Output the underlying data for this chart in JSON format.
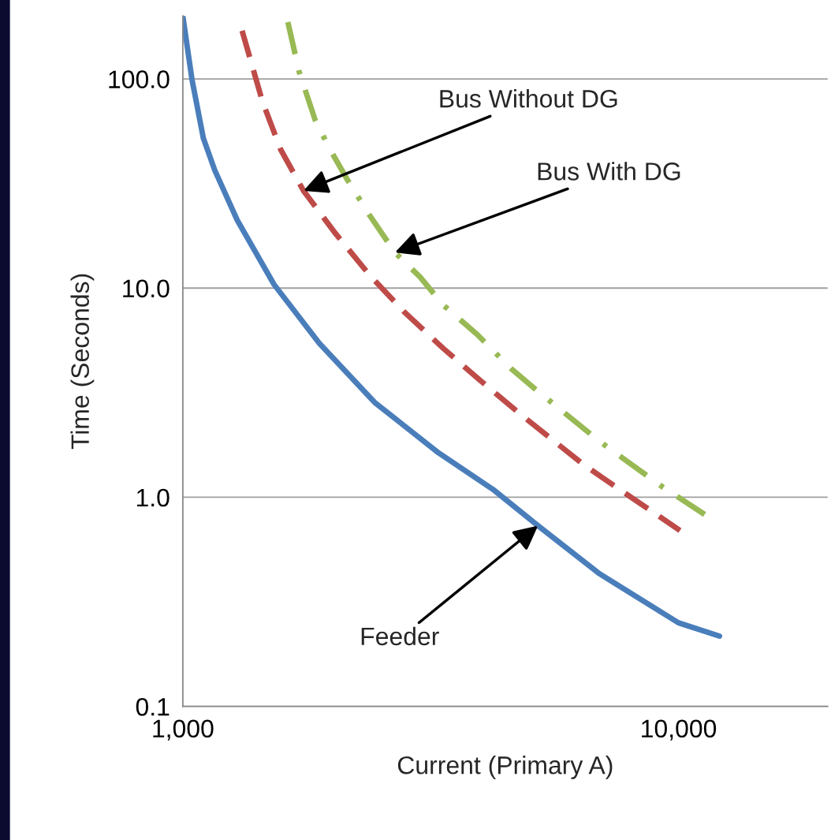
{
  "chart_data": {
    "type": "line",
    "xlabel": "Current (Primary A)",
    "ylabel": "Time (Seconds)",
    "log": "xy",
    "xlim": [
      1000,
      20000
    ],
    "ylim": [
      0.1,
      200
    ],
    "xticks": [
      {
        "value": 1000,
        "label": "1,000"
      },
      {
        "value": 10000,
        "label": "10,000"
      }
    ],
    "yticks": [
      {
        "value": 0.1,
        "label": "0.1"
      },
      {
        "value": 1,
        "label": "1.0"
      },
      {
        "value": 10,
        "label": "10.0"
      },
      {
        "value": 100,
        "label": "100.0"
      }
    ],
    "grid": "y",
    "series": [
      {
        "color": "#4a7ebb",
        "line_style": "solid",
        "x": [
          1000,
          1043,
          1100,
          1160,
          1288,
          1528,
          1886,
          2438,
          3281,
          4226,
          5207,
          6930,
          10000,
          12100
        ],
        "values": [
          200,
          100,
          52.1,
          36.6,
          21.1,
          10.4,
          5.44,
          2.84,
          1.63,
          1.09,
          0.731,
          0.431,
          0.251,
          0.217
        ]
      },
      {
        "color": "#be4b48",
        "line_style": "dashed",
        "x": [
          1317,
          1448,
          1576,
          1752,
          2034,
          2384,
          2792,
          3347,
          3965,
          4803,
          6440,
          8020,
          10070
        ],
        "values": [
          170,
          77.8,
          45.9,
          29.2,
          18.2,
          11.5,
          7.73,
          5.17,
          3.65,
          2.49,
          1.43,
          1.0,
          0.694
        ]
      },
      {
        "color": "#98b954",
        "line_style": "dashdot",
        "x": [
          1629,
          1717,
          1849,
          1971,
          2144,
          2384,
          2679,
          3011,
          3347,
          3923,
          4596,
          5165,
          6930,
          9290,
          11560
        ],
        "values": [
          187,
          108,
          63.7,
          47.1,
          33.2,
          22.2,
          14.8,
          11.3,
          8.33,
          6.01,
          4.12,
          3.26,
          1.85,
          1.12,
          0.798
        ]
      }
    ],
    "annotations": [
      {
        "text": "Bus Without DG",
        "x": 1752,
        "y": 29.2
      },
      {
        "text": "Bus With DG",
        "x": 2679,
        "y": 14.8
      },
      {
        "text": "Feeder",
        "x": 5207,
        "y": 0.731
      }
    ]
  }
}
